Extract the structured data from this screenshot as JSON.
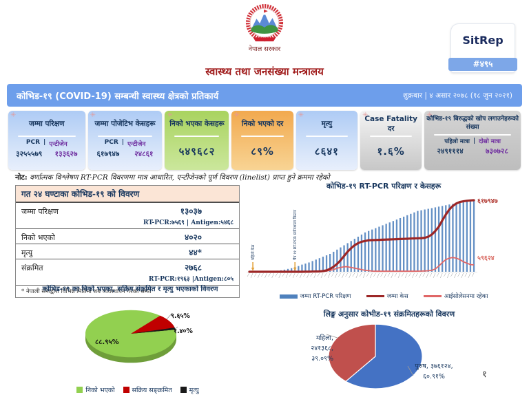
{
  "header": {
    "government": "नेपाल सरकार",
    "ministry": "स्वास्थ्य तथा जनसंख्या मन्त्रालय",
    "sitrep": {
      "label": "SitRep",
      "number": "#४९५"
    }
  },
  "title_bar": {
    "title": "कोभिड-१९ (COVID-19) सम्बन्धी स्वास्थ्य क्षेत्रको प्रतिकार्य",
    "date": "शुक्रबार | ४ असार २०७८ (१८ जुन २०२१)"
  },
  "cards": [
    {
      "title": "जम्मा परिक्षण",
      "col_labels": [
        "PCR",
        "एन्टीजेन"
      ],
      "sep": "|",
      "values": [
        "३२५५५७९",
        "१३३६२७"
      ],
      "theme": "blue"
    },
    {
      "title": "जम्मा पोजेटिभ केसहरू",
      "col_labels": [
        "PCR",
        "एन्टीजेन"
      ],
      "sep": "|",
      "values": [
        "६१७९४७",
        "२४८६१"
      ],
      "theme": "blue"
    },
    {
      "title": "निको भएका केसहरू",
      "value": "५४९६८२",
      "theme": "green"
    },
    {
      "title": "निको भएको दर",
      "value": "८९%",
      "theme": "orange"
    },
    {
      "title": "मृत्यु",
      "value": "८६४१",
      "theme": "blue"
    },
    {
      "title": "Case Fatality दर",
      "value": "१.६%",
      "theme": "silver"
    },
    {
      "title": "कोभिड-१९ बिरुद्धको खोप लगाउनेहरूको संख्या",
      "col_labels": [
        "पहिलो मात्रा",
        "दोस्रो मात्रा"
      ],
      "sep": "|",
      "values": [
        "२४९१११४",
        "७३०७२८"
      ],
      "theme": "gray"
    }
  ],
  "note": {
    "label": "नोट:",
    "text": "वर्णात्मक विश्लेषण RT-PCR विवरणमा मात्र आधारित, एन्टीजेनको पूर्ण विवरण (linelist) प्राप्त हुने क्रममा रहेको"
  },
  "table24": {
    "title": "गत २४ घण्टाका कोभिड-१९ को विवरण",
    "rows": [
      {
        "label": "जम्मा परिक्षण",
        "value": "१३०३७",
        "sub": "RT-PCR:७५६९ | Antigen:५४६८"
      },
      {
        "label": "निको भएको",
        "value": "४०२०"
      },
      {
        "label": "मृत्यु",
        "value": "४४*"
      },
      {
        "label": "संक्रमित",
        "value": "२७६८",
        "sub": "RT-PCR:१९६३ |Antigen:८०५"
      }
    ],
    "footnote": "* नेपाली सेनाद्वारा विभिन्न मितिमा शब व्यवस्थापन गरेका समेत"
  },
  "chart_data": [
    {
      "type": "combo-bar-line",
      "title": "कोभिड-१९ RT-PCR परिक्षण र केसहरू",
      "x_axis": "weekly dates (tiny rotated Nepali date labels, illegible at source resolution)",
      "legend_position": "bottom",
      "annotations": [
        {
          "text": "पहिलो केस",
          "index": 1
        },
        {
          "text": "चैत्र ११ RT-PCR प्रयोगशाला विस्तार",
          "index": 13
        }
      ],
      "series": [
        {
          "name": "जम्मा RT-PCR परिक्षण",
          "type": "bar",
          "color": "#4f81bd",
          "values": [
            0,
            0,
            0,
            0,
            7000,
            13000,
            20000,
            33000,
            49000,
            65000,
            98000,
            130000,
            163000,
            212000,
            260000,
            326000,
            374000,
            423000,
            488000,
            553000,
            619000,
            684000,
            749000,
            814000,
            912000,
            1009000,
            1107000,
            1205000,
            1302000,
            1400000,
            1498000,
            1595000,
            1693000,
            1791000,
            1856000,
            1921000,
            1986000,
            2051000,
            2116000,
            2181000,
            2246000,
            2311000,
            2377000,
            2442000,
            2507000,
            2572000,
            2637000,
            2702000,
            2767000,
            2800000,
            2832000,
            2865000,
            2897000,
            2930000,
            2963000,
            2995000,
            3028000,
            3060000,
            3093000,
            3125000,
            3158000,
            3190000,
            3223000,
            3240000,
            3255579
          ]
        },
        {
          "name": "जम्मा केस",
          "type": "line",
          "color": "#9c2626",
          "end_label": "६१७९४७",
          "values": [
            0,
            0,
            0,
            0,
            0,
            0,
            0,
            0,
            0,
            0,
            0,
            0,
            0,
            0,
            0,
            200,
            400,
            800,
            1500,
            2500,
            3100,
            6200,
            12400,
            24700,
            43300,
            68000,
            98900,
            135900,
            173000,
            203900,
            228600,
            247200,
            259500,
            265700,
            271900,
            273100,
            274400,
            275600,
            276800,
            278100,
            279300,
            280500,
            281800,
            283000,
            284300,
            285500,
            286700,
            288000,
            289200,
            290400,
            293500,
            302800,
            321300,
            352200,
            389300,
            444900,
            494400,
            537600,
            568500,
            590100,
            602500,
            608700,
            613000,
            616100,
            617947
          ]
        },
        {
          "name": "आईसोलेसनमा रहेका",
          "type": "line",
          "color": "#e06666",
          "end_label": "५९६२४",
          "values": [
            0,
            0,
            0,
            0,
            0,
            0,
            0,
            0,
            0,
            0,
            0,
            0,
            0,
            0,
            0,
            100,
            200,
            400,
            800,
            1500,
            2500,
            4000,
            6200,
            12400,
            18500,
            30900,
            37100,
            43300,
            43300,
            37100,
            30900,
            24700,
            18500,
            12400,
            9300,
            6200,
            5000,
            5000,
            5000,
            5000,
            5000,
            5000,
            5000,
            5000,
            5000,
            5000,
            5000,
            5000,
            5500,
            6000,
            7000,
            9000,
            12400,
            24700,
            49400,
            80300,
            105100,
            117400,
            123600,
            117400,
            105100,
            86500,
            74200,
            61800,
            59624
          ]
        }
      ]
    },
    {
      "type": "pie",
      "style": "3d",
      "title": "कोभिड-१९ का निको भएका, सक्रिय संक्रमित र मृत्यु भएकाको विवरण",
      "slices": [
        {
          "label": "निको भएको",
          "pct": 88.95,
          "label_text": "८८.९५%",
          "color": "#92d050"
        },
        {
          "label": "सक्रिय सङ्क्रमित",
          "pct": 9.65,
          "label_text": "९.६५%",
          "color": "#c00000"
        },
        {
          "label": "मृत्यु",
          "pct": 1.4,
          "label_text": "१.४०%",
          "color": "#1a1a1a"
        }
      ]
    },
    {
      "type": "pie",
      "title": "लिङ्ग अनुसार कोभीड-१९ संक्रमितहरूको विवरण",
      "slices": [
        {
          "label": "पुरुष",
          "value_text": "३७६१२४",
          "pct": 60.91,
          "color": "#4472c4",
          "label_lines": [
            "पुरुष, ३७६१२४,",
            "६०.९१%"
          ]
        },
        {
          "label": "महिला",
          "value_text": "२४१३६८",
          "pct": 39.09,
          "color": "#c0504d",
          "label_lines": [
            "महिला,",
            "२४१३६८,",
            "३९.०९%"
          ]
        }
      ]
    }
  ],
  "page_number": "१",
  "colors": {
    "accent_blue": "#6d9eeb",
    "navy_text": "#17365d",
    "maroon_title": "#a01c1c",
    "purple_value": "#7030a0",
    "table_header_bg": "#fbe5d6",
    "annotation_arrow": "#e3a33e",
    "case_end_label": "#b23b34",
    "iso_end_label": "#d96a62"
  }
}
